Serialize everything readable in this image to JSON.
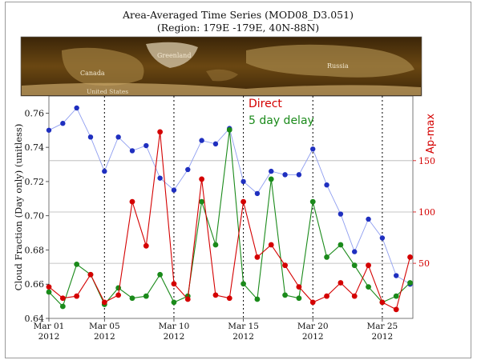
{
  "chart_data": {
    "type": "line",
    "title": "Area-Averaged Time Series (MOD08_D3.051)",
    "subtitle": "(Region: 179E -179E, 40N-88N)",
    "map_labels": [
      "Greenland",
      "Canada",
      "United States",
      "Russia"
    ],
    "ylabel": "Cloud Fraction (Day only)  (unitless)",
    "y2label": "Ap-max",
    "ylim": [
      0.64,
      0.77
    ],
    "yticks": [
      "0.64",
      "0.66",
      "0.68",
      "0.70",
      "0.72",
      "0.74",
      "0.76"
    ],
    "y2lim": [
      -3.7,
      213
    ],
    "y2ticks": [
      "50",
      "100",
      "150"
    ],
    "xlim": [
      1,
      27.2
    ],
    "xticks": [
      {
        "day": 1,
        "label": "Mar 01",
        "year": "2012"
      },
      {
        "day": 5,
        "label": "Mar 05",
        "year": "2012"
      },
      {
        "day": 10,
        "label": "Mar 10",
        "year": "2012"
      },
      {
        "day": 15,
        "label": "Mar 15",
        "year": "2012"
      },
      {
        "day": 20,
        "label": "Mar 20",
        "year": "2012"
      },
      {
        "day": 25,
        "label": "Mar 25",
        "year": "2012"
      }
    ],
    "annotations": {
      "direct": "Direct",
      "delay": "5 day delay"
    },
    "cloud_fraction": {
      "color": "#1f2fbf",
      "line_color": "#8f9ef0",
      "x": [
        1,
        2,
        3,
        4,
        5,
        6,
        7,
        8,
        9,
        10,
        11,
        12,
        13,
        14,
        15,
        16,
        17,
        18,
        19,
        20,
        21,
        22,
        23,
        24,
        25,
        26,
        27
      ],
      "values": [
        0.75,
        0.754,
        0.763,
        0.746,
        0.726,
        0.746,
        0.738,
        0.741,
        0.722,
        0.715,
        0.727,
        0.744,
        0.742,
        0.751,
        0.72,
        0.713,
        0.726,
        0.724,
        0.724,
        0.739,
        0.718,
        0.701,
        0.679,
        0.698,
        0.687,
        0.665,
        0.66
      ]
    },
    "ap_direct": {
      "color": "#d40000",
      "x": [
        1,
        2,
        3,
        4,
        5,
        6,
        7,
        8,
        9,
        10,
        11,
        12,
        13,
        14,
        15,
        16,
        17,
        18,
        19,
        20,
        21,
        22,
        23,
        24,
        25,
        26,
        27
      ],
      "values": [
        27,
        16,
        18,
        39,
        12,
        19,
        110,
        67,
        178,
        30,
        15,
        132,
        19,
        16,
        110,
        56,
        68,
        48,
        27,
        12,
        18,
        31,
        18,
        48,
        12,
        5,
        56
      ]
    },
    "ap_delay": {
      "color": "#1a8a1a",
      "x": [
        1,
        2,
        3,
        4,
        5,
        6,
        7,
        8,
        9,
        10,
        11,
        12,
        13,
        14,
        15,
        16,
        17,
        18,
        19,
        20,
        21,
        22,
        23,
        24,
        25,
        26,
        27
      ],
      "values": [
        22,
        8,
        49,
        39,
        10,
        26,
        16,
        18,
        39,
        12,
        18,
        110,
        68,
        180,
        30,
        15,
        132,
        19,
        16,
        110,
        56,
        68,
        48,
        27,
        12,
        18,
        31
      ]
    }
  }
}
